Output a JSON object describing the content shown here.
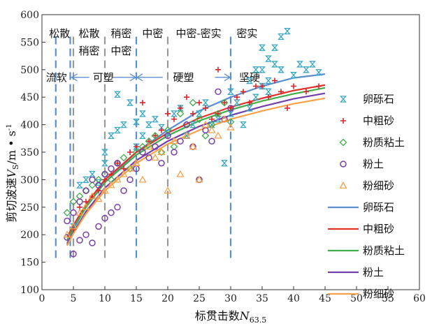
{
  "chart_data": {
    "type": "scatter",
    "title": "",
    "xlabel": "标贯击数N63.5",
    "xlabel_main": "标贯击数",
    "xlabel_sym": "N",
    "xlabel_sub": "63.5",
    "ylabel_main": "剪切波速",
    "ylabel_sym": "V",
    "ylabel_sub": "S",
    "ylabel_unit": "/m • s",
    "ylabel_exp": "-1",
    "xlim": [
      0,
      60
    ],
    "ylim": [
      100,
      600
    ],
    "xticks": [
      "0",
      "5",
      "10",
      "15",
      "20",
      "25",
      "30",
      "35",
      "40",
      "45",
      "50",
      "55",
      "60"
    ],
    "yticks": [
      "100",
      "150",
      "200",
      "250",
      "300",
      "350",
      "400",
      "450",
      "500",
      "550",
      "600"
    ],
    "grid": false,
    "legend_position": "right",
    "density_zones": [
      {
        "text": "松散",
        "x_center": 2.8
      },
      {
        "text": "松散",
        "x_center": 7.5
      },
      {
        "text": "稍密",
        "x_center": 7.5,
        "row": 2
      },
      {
        "text": "稍密",
        "x_center": 12.6
      },
      {
        "text": "中密",
        "x_center": 12.6,
        "row": 2
      },
      {
        "text": "中密",
        "x_center": 17.6
      },
      {
        "text": "中密-密实",
        "x_center": 24.9
      },
      {
        "text": "密实",
        "x_center": 32.6
      }
    ],
    "consistency_zones": [
      {
        "text": "流软",
        "from": 0,
        "to": 4.5
      },
      {
        "text": "可塑",
        "from": 4.5,
        "to": 15
      },
      {
        "text": "硬塑",
        "from": 15,
        "to": 30
      },
      {
        "text": "坚硬",
        "from": 30,
        "to": 36
      }
    ],
    "boundaries": [
      {
        "x": 2.2,
        "color": "#5b8fd0",
        "y_top": 560
      },
      {
        "x": 4.5,
        "color": "#5b8fd0",
        "y_top": 560
      },
      {
        "x": 5.0,
        "color": "#999999",
        "y_top": 560
      },
      {
        "x": 10.0,
        "color": "#999999",
        "y_top": 560
      },
      {
        "x": 15.0,
        "color": "#5b8fd0",
        "y_top": 560
      },
      {
        "x": 20.0,
        "color": "#999999",
        "y_top": 560
      },
      {
        "x": 30.0,
        "color": "#5b8fd0",
        "y_top": 560
      }
    ],
    "series": [
      {
        "name": "卵砾石",
        "kind": "scatter",
        "marker": "hourglass",
        "color": "#3aa7c4",
        "x": [
          5,
          6,
          7,
          8,
          9,
          10,
          10,
          11,
          12,
          12,
          13,
          14,
          15,
          15,
          16,
          16,
          17,
          18,
          19,
          20,
          21,
          22,
          23,
          24,
          25,
          26,
          27,
          28,
          29,
          30,
          30,
          31,
          32,
          33,
          33,
          34,
          34,
          35,
          35,
          35,
          36,
          36,
          36,
          37,
          37,
          38,
          38,
          39,
          40,
          41,
          42,
          43,
          44
        ],
        "y": [
          215,
          290,
          300,
          310,
          295,
          330,
          350,
          380,
          390,
          455,
          400,
          440,
          405,
          360,
          420,
          380,
          400,
          410,
          395,
          385,
          420,
          430,
          380,
          400,
          420,
          440,
          400,
          410,
          330,
          460,
          420,
          440,
          400,
          480,
          430,
          500,
          450,
          540,
          500,
          470,
          520,
          480,
          460,
          540,
          510,
          560,
          500,
          570,
          490,
          510,
          500,
          510,
          495
        ]
      },
      {
        "name": "中粗砂",
        "kind": "scatter",
        "marker": "plus",
        "color": "#d7262b",
        "x": [
          5,
          6,
          7,
          8,
          9,
          10,
          11,
          12,
          13,
          14,
          15,
          16,
          17,
          18,
          19,
          20,
          21,
          22,
          23,
          24,
          25,
          26,
          27,
          28,
          28,
          29,
          30,
          31,
          32,
          33,
          34,
          35,
          36,
          37,
          38,
          39,
          40,
          42,
          44
        ],
        "y": [
          210,
          250,
          260,
          270,
          280,
          300,
          310,
          330,
          320,
          350,
          360,
          440,
          370,
          380,
          390,
          420,
          410,
          430,
          450,
          420,
          440,
          430,
          410,
          500,
          420,
          440,
          430,
          450,
          460,
          440,
          470,
          470,
          450,
          480,
          460,
          430,
          470,
          460,
          470
        ]
      },
      {
        "name": "粉质粘土",
        "kind": "scatter",
        "marker": "diamond",
        "color": "#3fae49",
        "x": [
          4,
          5,
          6,
          7,
          8,
          9,
          10,
          11,
          12,
          13,
          14,
          15,
          16,
          17,
          18,
          19,
          20,
          21,
          22,
          23,
          24,
          25,
          26,
          27,
          28,
          29,
          30
        ],
        "y": [
          240,
          260,
          270,
          280,
          290,
          300,
          310,
          300,
          330,
          340,
          320,
          350,
          360,
          370,
          380,
          350,
          390,
          360,
          420,
          400,
          440,
          410,
          380,
          400,
          420,
          440,
          405
        ]
      },
      {
        "name": "粉土",
        "kind": "scatter",
        "marker": "circle",
        "color": "#7b3fa8",
        "x": [
          4,
          4,
          5,
          5,
          6,
          6,
          7,
          7,
          8,
          8,
          9,
          9,
          10,
          10,
          11,
          11,
          12,
          12,
          13,
          14,
          15,
          16,
          17,
          18,
          19,
          20,
          21,
          22,
          23,
          24,
          25,
          26,
          27,
          28,
          29,
          30
        ],
        "y": [
          195,
          225,
          165,
          240,
          190,
          260,
          200,
          280,
          185,
          300,
          215,
          290,
          230,
          310,
          240,
          320,
          250,
          330,
          280,
          300,
          320,
          350,
          340,
          360,
          330,
          380,
          350,
          370,
          400,
          360,
          300,
          390,
          370,
          460,
          410,
          430
        ]
      },
      {
        "name": "粉细砂",
        "kind": "scatter",
        "marker": "triangle",
        "color": "#f6a14a",
        "x": [
          4,
          5,
          6,
          7,
          8,
          9,
          10,
          11,
          12,
          13,
          14,
          15,
          16,
          17,
          18,
          19,
          20,
          21,
          22,
          23,
          24,
          25,
          26,
          27,
          28,
          29,
          30
        ],
        "y": [
          200,
          215,
          240,
          250,
          270,
          265,
          280,
          290,
          300,
          310,
          320,
          330,
          300,
          360,
          340,
          350,
          280,
          370,
          310,
          380,
          360,
          300,
          400,
          390,
          380,
          410,
          395
        ]
      },
      {
        "name": "卵砾石",
        "kind": "fit",
        "color": "#5b8fd0",
        "x": [
          4,
          5,
          7,
          10,
          15,
          20,
          25,
          30,
          35,
          40,
          45
        ],
        "y": [
          185,
          210,
          250,
          295,
          350,
          390,
          425,
          450,
          470,
          485,
          492
        ]
      },
      {
        "name": "中粗砂",
        "kind": "fit",
        "color": "#e0322b",
        "x": [
          4,
          5,
          7,
          10,
          15,
          20,
          25,
          30,
          35,
          40,
          45
        ],
        "y": [
          195,
          217,
          255,
          300,
          350,
          385,
          412,
          432,
          448,
          462,
          472
        ]
      },
      {
        "name": "粉质粘土",
        "kind": "fit",
        "color": "#3fae49",
        "x": [
          4,
          5,
          7,
          10,
          15,
          20,
          25,
          30,
          35,
          40,
          45
        ],
        "y": [
          190,
          212,
          250,
          295,
          345,
          380,
          407,
          427,
          443,
          456,
          467
        ]
      },
      {
        "name": "粉土",
        "kind": "fit",
        "color": "#7040a8",
        "x": [
          4,
          5,
          7,
          10,
          15,
          20,
          25,
          30,
          35,
          40,
          45
        ],
        "y": [
          182,
          204,
          242,
          285,
          335,
          370,
          397,
          417,
          433,
          447,
          457
        ]
      },
      {
        "name": "粉细砂",
        "kind": "fit",
        "color": "#f6a14a",
        "x": [
          4,
          5,
          7,
          10,
          15,
          20,
          25,
          30,
          35,
          40,
          45
        ],
        "y": [
          180,
          202,
          238,
          280,
          330,
          365,
          390,
          410,
          425,
          438,
          448
        ]
      }
    ]
  }
}
